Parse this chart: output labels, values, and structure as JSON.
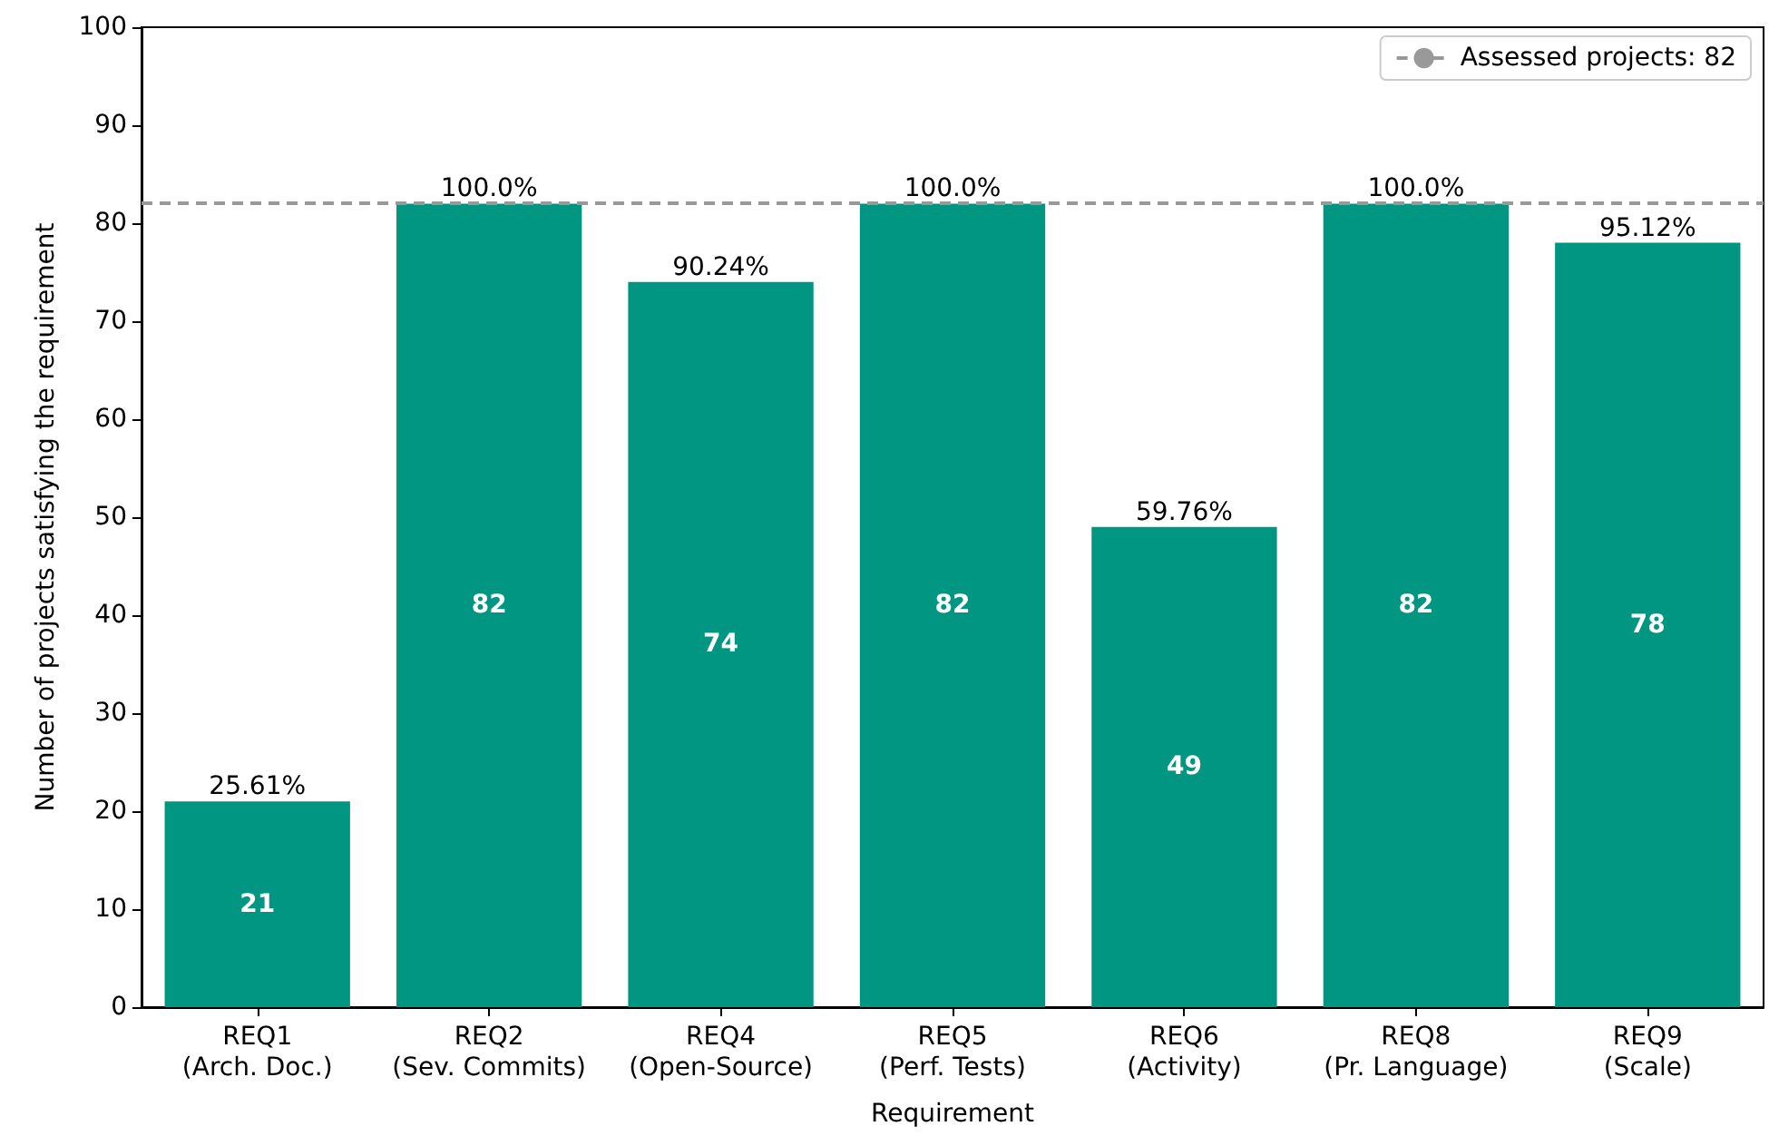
{
  "chart_data": {
    "type": "bar",
    "xlabel": "Requirement",
    "ylabel": "Number of projects satisfying the requirement",
    "categories": [
      "REQ1\n(Arch. Doc.)",
      "REQ2\n(Sev. Commits)",
      "REQ4\n(Open-Source)",
      "REQ5\n(Perf. Tests)",
      "REQ6\n(Activity)",
      "REQ8\n(Pr. Language)",
      "REQ9\n(Scale)"
    ],
    "values": [
      21,
      82,
      74,
      82,
      49,
      82,
      78
    ],
    "color": "#009682",
    "data_labels": true,
    "annotations": [
      {
        "text": "25.61%",
        "x": "REQ1\n(Arch. Doc.)",
        "y": 21
      },
      {
        "text": "100.0%",
        "x": "REQ2\n(Sev. Commits)",
        "y": 82
      },
      {
        "text": "90.24%",
        "x": "REQ4\n(Open-Source)",
        "y": 74
      },
      {
        "text": "100.0%",
        "x": "REQ5\n(Perf. Tests)",
        "y": 82
      },
      {
        "text": "59.76%",
        "x": "REQ6\n(Activity)",
        "y": 49
      },
      {
        "text": "100.0%",
        "x": "REQ8\n(Pr. Language)",
        "y": 82
      },
      {
        "text": "95.12%",
        "x": "REQ9\n(Scale)",
        "y": 78
      }
    ],
    "ref_lines": [
      {
        "axis": "y",
        "value": 82,
        "label": "Assessed projects: 82",
        "color": "#999999",
        "line_style": "dashed"
      }
    ],
    "ylim": [
      0,
      100
    ],
    "yticks": [
      0,
      10,
      20,
      30,
      40,
      50,
      60,
      70,
      80,
      90,
      100
    ],
    "grid": false,
    "legend": "top right"
  }
}
